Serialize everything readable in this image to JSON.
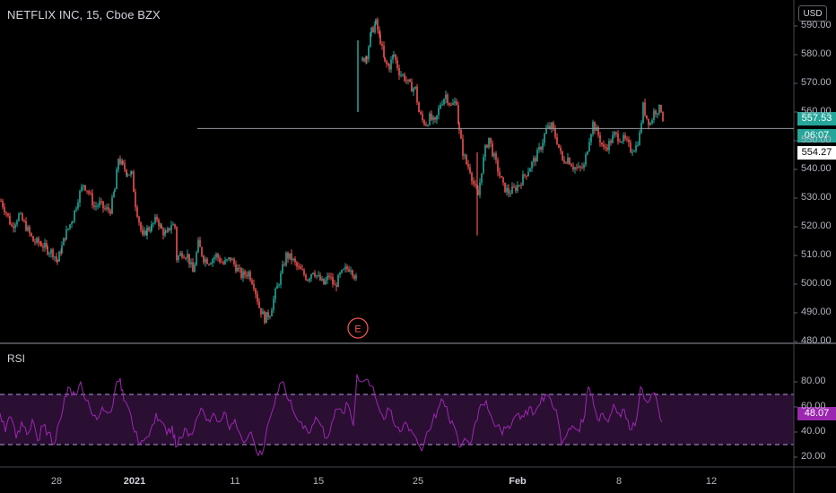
{
  "header": {
    "symbol_title": "NETFLIX INC, 15, Cboe BZX",
    "currency": "USD"
  },
  "price_axis": {
    "ticks": [
      "590.00",
      "580.00",
      "570.00",
      "560.00",
      "550.00",
      "540.00",
      "530.00",
      "520.00",
      "510.00",
      "500.00",
      "490.00",
      "480.00"
    ],
    "last_price_tag": "557.53",
    "countdown_tag": "06:07",
    "line_price_tag": "554.27"
  },
  "rsi_panel": {
    "label": "RSI",
    "ticks": [
      "80.00",
      "60.00",
      "40.00",
      "20.00"
    ],
    "value_tag": "48.07"
  },
  "time_axis": {
    "labels": [
      "28",
      "2021",
      "11",
      "15",
      "25",
      "Feb",
      "8",
      "12"
    ]
  },
  "event_marker": {
    "label": "E"
  },
  "colors": {
    "background": "#000000",
    "up": "#26a69a",
    "down": "#ef5350",
    "rsi_line": "#9c27b0",
    "rsi_band": "#2a0f33",
    "horizontal_line": "#9598a1"
  },
  "chart_data": [
    {
      "type": "candlestick",
      "title": "NETFLIX INC, 15, Cboe BZX",
      "ylim": [
        480,
        592
      ],
      "grid": false,
      "horizontal_line": 554.27,
      "last_price": 557.53,
      "x_tick_labels": [
        "28",
        "2021",
        "11",
        "15",
        "25",
        "Feb",
        "8",
        "12"
      ],
      "close_path": [
        {
          "x": 0,
          "y": 529
        },
        {
          "x": 6,
          "y": 525
        },
        {
          "x": 12,
          "y": 520
        },
        {
          "x": 20,
          "y": 524
        },
        {
          "x": 28,
          "y": 520
        },
        {
          "x": 36,
          "y": 515
        },
        {
          "x": 45,
          "y": 514
        },
        {
          "x": 52,
          "y": 512
        },
        {
          "x": 58,
          "y": 511
        },
        {
          "x": 63,
          "y": 508
        },
        {
          "x": 68,
          "y": 513
        },
        {
          "x": 73,
          "y": 518
        },
        {
          "x": 80,
          "y": 523
        },
        {
          "x": 86,
          "y": 530
        },
        {
          "x": 92,
          "y": 535
        },
        {
          "x": 98,
          "y": 532
        },
        {
          "x": 104,
          "y": 527
        },
        {
          "x": 110,
          "y": 528
        },
        {
          "x": 116,
          "y": 526
        },
        {
          "x": 122,
          "y": 526
        },
        {
          "x": 127,
          "y": 533
        },
        {
          "x": 131,
          "y": 544
        },
        {
          "x": 136,
          "y": 541
        },
        {
          "x": 141,
          "y": 539
        },
        {
          "x": 146,
          "y": 538
        },
        {
          "x": 150,
          "y": 528
        },
        {
          "x": 154,
          "y": 522
        },
        {
          "x": 158,
          "y": 516
        },
        {
          "x": 163,
          "y": 519
        },
        {
          "x": 168,
          "y": 520
        },
        {
          "x": 174,
          "y": 523
        },
        {
          "x": 179,
          "y": 519
        },
        {
          "x": 184,
          "y": 517
        },
        {
          "x": 190,
          "y": 521
        },
        {
          "x": 194,
          "y": 520
        },
        {
          "x": 196,
          "y": 509
        },
        {
          "x": 202,
          "y": 511
        },
        {
          "x": 208,
          "y": 510
        },
        {
          "x": 214,
          "y": 504
        },
        {
          "x": 220,
          "y": 514
        },
        {
          "x": 226,
          "y": 509
        },
        {
          "x": 232,
          "y": 508
        },
        {
          "x": 240,
          "y": 510
        },
        {
          "x": 248,
          "y": 507
        },
        {
          "x": 256,
          "y": 509
        },
        {
          "x": 262,
          "y": 506
        },
        {
          "x": 268,
          "y": 503
        },
        {
          "x": 276,
          "y": 504
        },
        {
          "x": 282,
          "y": 500
        },
        {
          "x": 288,
          "y": 492
        },
        {
          "x": 294,
          "y": 488
        },
        {
          "x": 300,
          "y": 490
        },
        {
          "x": 306,
          "y": 497
        },
        {
          "x": 312,
          "y": 503
        },
        {
          "x": 318,
          "y": 510
        },
        {
          "x": 324,
          "y": 509
        },
        {
          "x": 330,
          "y": 506
        },
        {
          "x": 336,
          "y": 504
        },
        {
          "x": 342,
          "y": 502
        },
        {
          "x": 348,
          "y": 505
        },
        {
          "x": 354,
          "y": 502
        },
        {
          "x": 360,
          "y": 500
        },
        {
          "x": 366,
          "y": 503
        },
        {
          "x": 372,
          "y": 499
        },
        {
          "x": 378,
          "y": 503
        },
        {
          "x": 384,
          "y": 505
        },
        {
          "x": 390,
          "y": 506
        },
        {
          "x": 397,
          "y": 501
        },
        {
          "x": 399,
          "y": 560
        },
        {
          "x": 403,
          "y": 578
        },
        {
          "x": 408,
          "y": 580
        },
        {
          "x": 413,
          "y": 588
        },
        {
          "x": 418,
          "y": 591
        },
        {
          "x": 423,
          "y": 585
        },
        {
          "x": 428,
          "y": 577
        },
        {
          "x": 433,
          "y": 576
        },
        {
          "x": 438,
          "y": 580
        },
        {
          "x": 444,
          "y": 574
        },
        {
          "x": 450,
          "y": 572
        },
        {
          "x": 456,
          "y": 569
        },
        {
          "x": 462,
          "y": 568
        },
        {
          "x": 466,
          "y": 560
        },
        {
          "x": 470,
          "y": 557
        },
        {
          "x": 474,
          "y": 556
        },
        {
          "x": 478,
          "y": 558
        },
        {
          "x": 484,
          "y": 556
        },
        {
          "x": 490,
          "y": 563
        },
        {
          "x": 496,
          "y": 566
        },
        {
          "x": 502,
          "y": 562
        },
        {
          "x": 508,
          "y": 564
        },
        {
          "x": 511,
          "y": 553
        },
        {
          "x": 515,
          "y": 546
        },
        {
          "x": 519,
          "y": 542
        },
        {
          "x": 523,
          "y": 540
        },
        {
          "x": 527,
          "y": 535
        },
        {
          "x": 532,
          "y": 531
        },
        {
          "x": 536,
          "y": 540
        },
        {
          "x": 540,
          "y": 547
        },
        {
          "x": 544,
          "y": 551
        },
        {
          "x": 548,
          "y": 546
        },
        {
          "x": 552,
          "y": 542
        },
        {
          "x": 556,
          "y": 538
        },
        {
          "x": 560,
          "y": 534
        },
        {
          "x": 566,
          "y": 532
        },
        {
          "x": 572,
          "y": 533
        },
        {
          "x": 578,
          "y": 535
        },
        {
          "x": 584,
          "y": 538
        },
        {
          "x": 590,
          "y": 541
        },
        {
          "x": 596,
          "y": 544
        },
        {
          "x": 602,
          "y": 548
        },
        {
          "x": 608,
          "y": 554
        },
        {
          "x": 614,
          "y": 555
        },
        {
          "x": 620,
          "y": 550
        },
        {
          "x": 626,
          "y": 543
        },
        {
          "x": 632,
          "y": 544
        },
        {
          "x": 638,
          "y": 541
        },
        {
          "x": 644,
          "y": 540
        },
        {
          "x": 650,
          "y": 541
        },
        {
          "x": 656,
          "y": 551
        },
        {
          "x": 660,
          "y": 556
        },
        {
          "x": 666,
          "y": 552
        },
        {
          "x": 672,
          "y": 547
        },
        {
          "x": 678,
          "y": 549
        },
        {
          "x": 684,
          "y": 552
        },
        {
          "x": 690,
          "y": 551
        },
        {
          "x": 696,
          "y": 550
        },
        {
          "x": 702,
          "y": 547
        },
        {
          "x": 708,
          "y": 548
        },
        {
          "x": 712,
          "y": 552
        },
        {
          "x": 716,
          "y": 562
        },
        {
          "x": 720,
          "y": 558
        },
        {
          "x": 724,
          "y": 556
        },
        {
          "x": 728,
          "y": 560
        },
        {
          "x": 732,
          "y": 561
        },
        {
          "x": 736,
          "y": 561
        },
        {
          "x": 740,
          "y": 555
        }
      ]
    },
    {
      "type": "line",
      "title": "RSI",
      "ylim": [
        15,
        90
      ],
      "bands": [
        30,
        70
      ],
      "current_value": 48.07,
      "path": [
        {
          "x": 0,
          "y": 55
        },
        {
          "x": 6,
          "y": 40
        },
        {
          "x": 12,
          "y": 52
        },
        {
          "x": 18,
          "y": 35
        },
        {
          "x": 24,
          "y": 48
        },
        {
          "x": 30,
          "y": 38
        },
        {
          "x": 36,
          "y": 50
        },
        {
          "x": 42,
          "y": 33
        },
        {
          "x": 48,
          "y": 45
        },
        {
          "x": 54,
          "y": 40
        },
        {
          "x": 60,
          "y": 30
        },
        {
          "x": 66,
          "y": 48
        },
        {
          "x": 72,
          "y": 68
        },
        {
          "x": 78,
          "y": 75
        },
        {
          "x": 84,
          "y": 70
        },
        {
          "x": 90,
          "y": 80
        },
        {
          "x": 96,
          "y": 65
        },
        {
          "x": 102,
          "y": 55
        },
        {
          "x": 108,
          "y": 50
        },
        {
          "x": 114,
          "y": 60
        },
        {
          "x": 120,
          "y": 55
        },
        {
          "x": 126,
          "y": 62
        },
        {
          "x": 130,
          "y": 80
        },
        {
          "x": 134,
          "y": 83
        },
        {
          "x": 138,
          "y": 65
        },
        {
          "x": 144,
          "y": 58
        },
        {
          "x": 150,
          "y": 40
        },
        {
          "x": 156,
          "y": 30
        },
        {
          "x": 162,
          "y": 35
        },
        {
          "x": 168,
          "y": 42
        },
        {
          "x": 174,
          "y": 55
        },
        {
          "x": 180,
          "y": 48
        },
        {
          "x": 186,
          "y": 38
        },
        {
          "x": 192,
          "y": 45
        },
        {
          "x": 196,
          "y": 28
        },
        {
          "x": 202,
          "y": 35
        },
        {
          "x": 208,
          "y": 42
        },
        {
          "x": 214,
          "y": 38
        },
        {
          "x": 220,
          "y": 52
        },
        {
          "x": 226,
          "y": 58
        },
        {
          "x": 232,
          "y": 50
        },
        {
          "x": 238,
          "y": 55
        },
        {
          "x": 244,
          "y": 48
        },
        {
          "x": 250,
          "y": 56
        },
        {
          "x": 256,
          "y": 42
        },
        {
          "x": 262,
          "y": 50
        },
        {
          "x": 268,
          "y": 38
        },
        {
          "x": 274,
          "y": 33
        },
        {
          "x": 280,
          "y": 40
        },
        {
          "x": 286,
          "y": 24
        },
        {
          "x": 292,
          "y": 22
        },
        {
          "x": 298,
          "y": 45
        },
        {
          "x": 304,
          "y": 58
        },
        {
          "x": 310,
          "y": 72
        },
        {
          "x": 316,
          "y": 80
        },
        {
          "x": 322,
          "y": 65
        },
        {
          "x": 328,
          "y": 55
        },
        {
          "x": 334,
          "y": 48
        },
        {
          "x": 340,
          "y": 45
        },
        {
          "x": 346,
          "y": 40
        },
        {
          "x": 352,
          "y": 52
        },
        {
          "x": 358,
          "y": 45
        },
        {
          "x": 364,
          "y": 35
        },
        {
          "x": 370,
          "y": 48
        },
        {
          "x": 376,
          "y": 58
        },
        {
          "x": 382,
          "y": 55
        },
        {
          "x": 388,
          "y": 62
        },
        {
          "x": 394,
          "y": 45
        },
        {
          "x": 398,
          "y": 86
        },
        {
          "x": 404,
          "y": 80
        },
        {
          "x": 410,
          "y": 82
        },
        {
          "x": 416,
          "y": 76
        },
        {
          "x": 422,
          "y": 60
        },
        {
          "x": 428,
          "y": 50
        },
        {
          "x": 434,
          "y": 58
        },
        {
          "x": 440,
          "y": 45
        },
        {
          "x": 446,
          "y": 40
        },
        {
          "x": 452,
          "y": 48
        },
        {
          "x": 458,
          "y": 42
        },
        {
          "x": 464,
          "y": 35
        },
        {
          "x": 470,
          "y": 25
        },
        {
          "x": 476,
          "y": 40
        },
        {
          "x": 482,
          "y": 48
        },
        {
          "x": 488,
          "y": 58
        },
        {
          "x": 494,
          "y": 65
        },
        {
          "x": 500,
          "y": 52
        },
        {
          "x": 506,
          "y": 45
        },
        {
          "x": 512,
          "y": 28
        },
        {
          "x": 518,
          "y": 35
        },
        {
          "x": 524,
          "y": 30
        },
        {
          "x": 530,
          "y": 48
        },
        {
          "x": 536,
          "y": 62
        },
        {
          "x": 542,
          "y": 65
        },
        {
          "x": 548,
          "y": 52
        },
        {
          "x": 554,
          "y": 45
        },
        {
          "x": 560,
          "y": 38
        },
        {
          "x": 566,
          "y": 45
        },
        {
          "x": 572,
          "y": 50
        },
        {
          "x": 578,
          "y": 55
        },
        {
          "x": 584,
          "y": 52
        },
        {
          "x": 590,
          "y": 60
        },
        {
          "x": 596,
          "y": 55
        },
        {
          "x": 602,
          "y": 62
        },
        {
          "x": 608,
          "y": 70
        },
        {
          "x": 614,
          "y": 66
        },
        {
          "x": 620,
          "y": 58
        },
        {
          "x": 626,
          "y": 30
        },
        {
          "x": 632,
          "y": 38
        },
        {
          "x": 638,
          "y": 45
        },
        {
          "x": 644,
          "y": 42
        },
        {
          "x": 650,
          "y": 48
        },
        {
          "x": 656,
          "y": 76
        },
        {
          "x": 660,
          "y": 70
        },
        {
          "x": 666,
          "y": 50
        },
        {
          "x": 672,
          "y": 55
        },
        {
          "x": 678,
          "y": 48
        },
        {
          "x": 684,
          "y": 62
        },
        {
          "x": 690,
          "y": 55
        },
        {
          "x": 696,
          "y": 58
        },
        {
          "x": 702,
          "y": 42
        },
        {
          "x": 708,
          "y": 45
        },
        {
          "x": 714,
          "y": 76
        },
        {
          "x": 720,
          "y": 65
        },
        {
          "x": 726,
          "y": 70
        },
        {
          "x": 732,
          "y": 66
        },
        {
          "x": 738,
          "y": 48
        }
      ]
    }
  ]
}
